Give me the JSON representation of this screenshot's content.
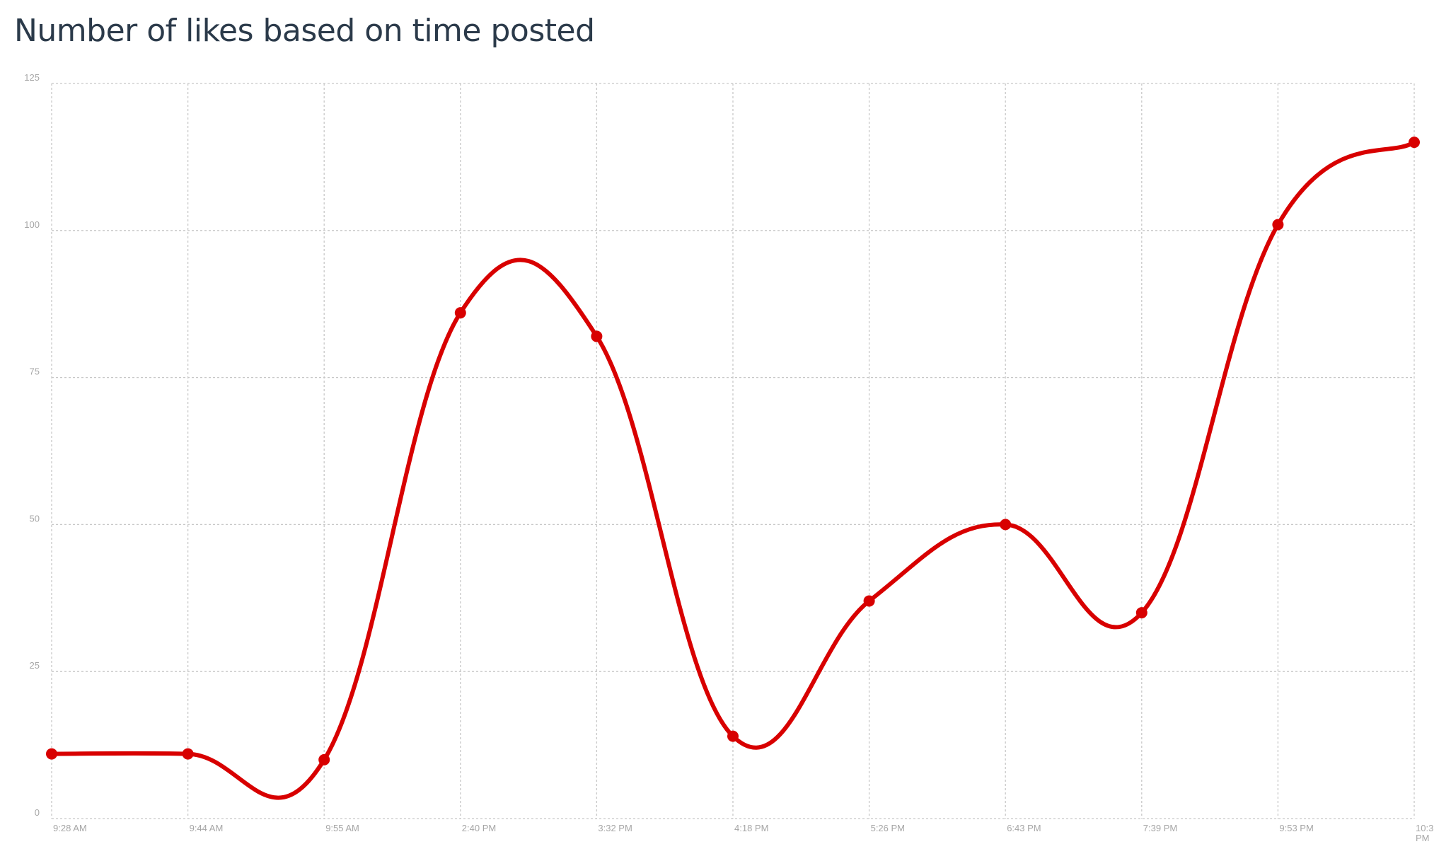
{
  "chart_data": {
    "type": "line",
    "title": "Number of likes based on time posted",
    "xlabel": "",
    "ylabel": "",
    "categories": [
      "9:28 AM",
      "9:44 AM",
      "9:55 AM",
      "2:40 PM",
      "3:32 PM",
      "4:18 PM",
      "5:26 PM",
      "6:43 PM",
      "7:39 PM",
      "9:53 PM",
      "10:3 PM"
    ],
    "series": [
      {
        "values": [
          11,
          11,
          10,
          86,
          82,
          14,
          37,
          50,
          35,
          101,
          115
        ]
      }
    ],
    "ylim": [
      0,
      125
    ],
    "yticks": [
      0,
      25,
      50,
      75,
      100,
      125
    ],
    "grid": true,
    "curve": "smooth",
    "colors": {
      "line": "#d80000",
      "grid": "#c8c8c8",
      "ticks": "#a6a6a6",
      "title": "#2b3a4a"
    }
  }
}
